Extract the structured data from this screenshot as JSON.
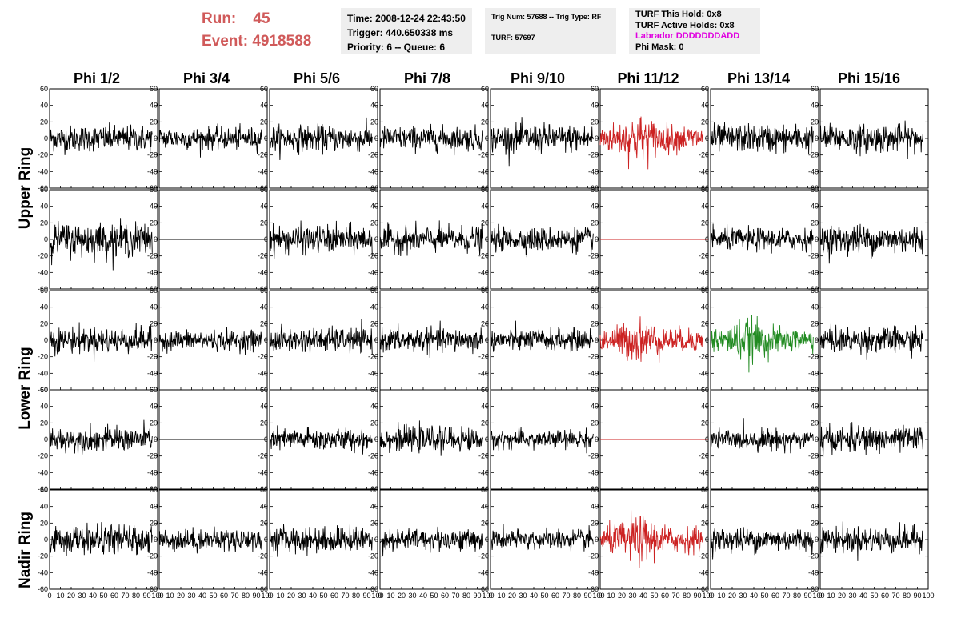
{
  "header": {
    "run_label": "Run:",
    "run_value": "45",
    "event_label": "Event:",
    "event_value": "4918588"
  },
  "info_time": {
    "time": "Time: 2008-12-24 22:43:50",
    "trigger": "Trigger: 440.650338 ms",
    "priority": "Priority: 6 -- Queue: 6"
  },
  "info_trig": {
    "trig": "Trig Num: 57688 -- Trig Type: RF",
    "turf": "TURF: 57697"
  },
  "info_turf": {
    "this_hold": "TURF This Hold: 0x8",
    "active_holds": "TURF Active Holds: 0x8",
    "labrador": "Labrador DDDDDDDADD",
    "phi_mask": "Phi Mask: 0"
  },
  "columns": [
    "Phi 1/2",
    "Phi 3/4",
    "Phi 5/6",
    "Phi 7/8",
    "Phi 9/10",
    "Phi 11/12",
    "Phi 13/14",
    "Phi 15/16"
  ],
  "rings": [
    "Upper Ring",
    "Lower Ring",
    "Nadir Ring"
  ],
  "colors": {
    "normal": "#000000",
    "triggered": "#cc2222",
    "l1": "#228b22",
    "title_red": "#d05a5a"
  },
  "chart_data": {
    "type": "line",
    "description_axes": "waveform panels, 5 rows x 8 columns",
    "xlim": [
      0,
      100
    ],
    "ylim": [
      -60,
      60
    ],
    "y_ticks": [
      -60,
      -40,
      -20,
      0,
      20,
      40,
      60
    ],
    "x_ticks": [
      0,
      10,
      20,
      30,
      40,
      50,
      60,
      70,
      80,
      90,
      100
    ],
    "x_tick_labels": [
      "0",
      "10",
      "20",
      "30",
      "40",
      "50",
      "60",
      "70",
      "80",
      "90",
      "100"
    ],
    "panel_colors": [
      [
        "normal",
        "normal",
        "normal",
        "normal",
        "normal",
        "triggered",
        "normal",
        "normal"
      ],
      [
        "normal",
        "normal",
        "normal",
        "normal",
        "normal",
        "triggered",
        "normal",
        "normal"
      ],
      [
        "normal",
        "normal",
        "normal",
        "normal",
        "normal",
        "triggered",
        "l1",
        "normal"
      ],
      [
        "normal",
        "normal",
        "normal",
        "normal",
        "normal",
        "triggered",
        "normal",
        "normal"
      ],
      [
        "normal",
        "normal",
        "normal",
        "normal",
        "normal",
        "triggered",
        "normal",
        "normal"
      ]
    ],
    "flat_panels": [
      [
        1,
        1
      ],
      [
        1,
        5
      ],
      [
        3,
        1
      ],
      [
        3,
        5
      ]
    ],
    "amplitudes": [
      [
        14,
        12,
        14,
        13,
        15,
        20,
        15,
        15
      ],
      [
        18,
        0,
        15,
        14,
        13,
        0,
        12,
        16
      ],
      [
        14,
        11,
        13,
        13,
        12,
        18,
        18,
        14
      ],
      [
        13,
        0,
        12,
        13,
        10,
        0,
        11,
        14
      ],
      [
        15,
        12,
        14,
        12,
        11,
        20,
        13,
        14
      ]
    ],
    "samples_per_trace": 250
  }
}
